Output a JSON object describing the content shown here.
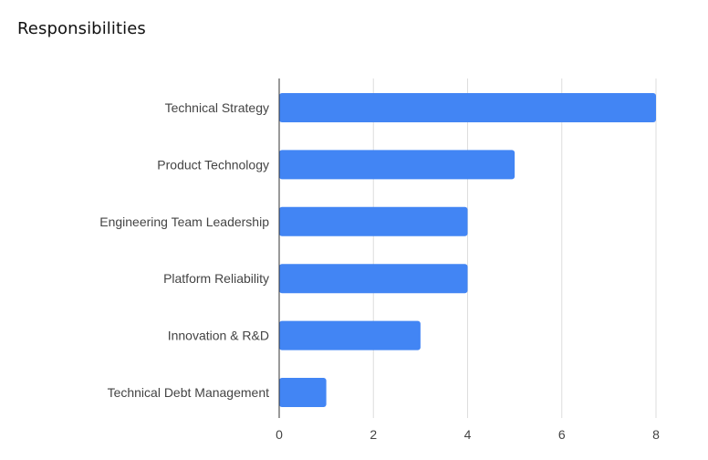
{
  "chart_data": {
    "type": "bar",
    "orientation": "horizontal",
    "title": "Responsibilities",
    "categories": [
      "Technical Strategy",
      "Product Technology",
      "Engineering Team Leadership",
      "Platform Reliability",
      "Innovation & R&D",
      "Technical Debt Management"
    ],
    "values": [
      8,
      5,
      4,
      4,
      3,
      1
    ],
    "xlim": [
      0,
      8
    ],
    "x_ticks": [
      0,
      2,
      4,
      6,
      8
    ],
    "grid": true,
    "bar_color": "#4285F4",
    "grid_color": "#DDDDDD",
    "axis_color": "#333333"
  }
}
